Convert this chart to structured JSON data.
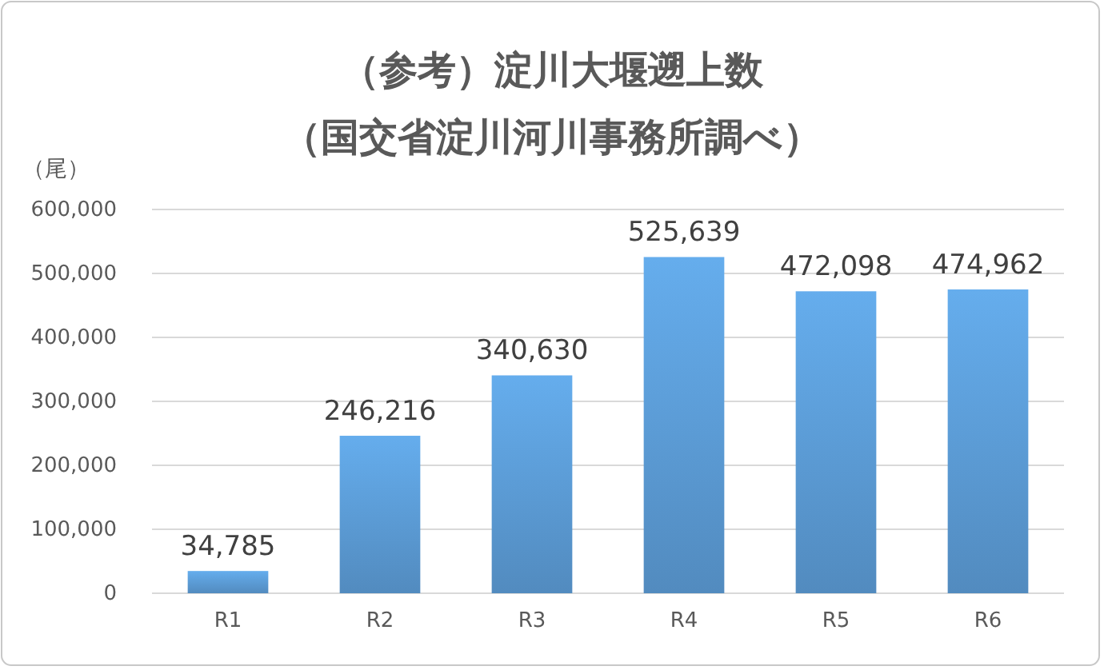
{
  "chart_data": {
    "type": "bar",
    "title": "（参考）淀川大堰遡上数",
    "subtitle": "（国交省淀川河川事務所調べ）",
    "ylabel": "（尾）",
    "categories": [
      "R1",
      "R2",
      "R3",
      "R4",
      "R5",
      "R6"
    ],
    "values": [
      34785,
      246216,
      340630,
      525639,
      472098,
      474962
    ],
    "color": "#5b9bd5",
    "ylim": [
      0,
      600000
    ],
    "yticks": [
      {
        "value": 0,
        "label": "0"
      },
      {
        "value": 100000,
        "label": "100,000"
      },
      {
        "value": 200000,
        "label": "200,000"
      },
      {
        "value": 300000,
        "label": "300,000"
      },
      {
        "value": 400000,
        "label": "400,000"
      },
      {
        "value": 500000,
        "label": "500,000"
      },
      {
        "value": 600000,
        "label": "600,000"
      }
    ],
    "value_labels": [
      "34,785",
      "246,216",
      "340,630",
      "525,639",
      "472,098",
      "474,962"
    ],
    "grid": "y"
  }
}
